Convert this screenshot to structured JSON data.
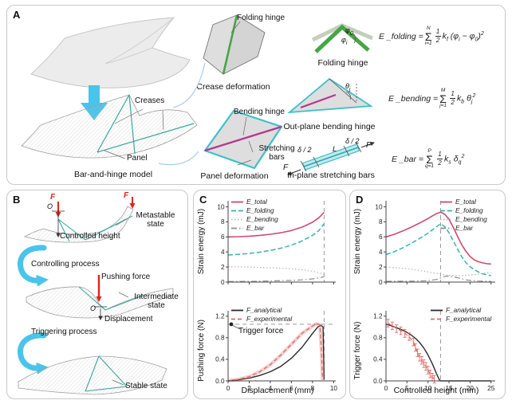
{
  "colors": {
    "crease_teal": "#3aa79e",
    "hinge_green": "#46a546",
    "hinge_green_light": "#c3cfbc",
    "bending_magenta": "#b03b8e",
    "bar_cyan": "#3fc0c9",
    "force_red": "#e3231c",
    "process_cyan": "#49c4ea",
    "connector_blue": "#a9cfe0",
    "guide_gray": "#9a9a9a"
  },
  "panel_a": {
    "letter": "A",
    "creases_label": "Creases",
    "panel_label": "Panel",
    "model_caption": "Bar-and-hinge model",
    "crease_group": {
      "hinge_label": "Folding hinge",
      "caption": "Crease deformation"
    },
    "panel_group": {
      "hinge_label": "Bending hinge",
      "bars_label": "Stretching bars",
      "caption": "Panel deformation"
    },
    "folding_glyph": {
      "caption": "Folding hinge",
      "phi0": "φ<sub>0</sub>",
      "phi_i": "φ<sub>i</sub>"
    },
    "bending_glyph": {
      "caption": "Out-plane bending hinge",
      "theta": "θ<sub>j</sub>"
    },
    "bar_glyph": {
      "caption": "In-plane stretching bars",
      "delta_left": "δ / 2",
      "delta_right": "δ / 2",
      "length": "L",
      "force_left": "F",
      "force_right": "F"
    },
    "equations": [
      {
        "lhs": "E _folding =",
        "sigma": "Σ",
        "upper": "N",
        "lower": "i=1",
        "num": "1",
        "den": "2",
        "body": "k<sub>f</sub> (φ<sub>i</sub> − φ<sub>0</sub>)<sup>2</sup>"
      },
      {
        "lhs": "E _bending =",
        "sigma": "Σ",
        "upper": "M",
        "lower": "j=1",
        "num": "1",
        "den": "2",
        "body": "k<sub>b</sub> θ<sub>j</sub><sup>2</sup>"
      },
      {
        "lhs": "E _bar =",
        "sigma": "Σ",
        "upper": "P",
        "lower": "q=1",
        "num": "1",
        "den": "2",
        "body": "k<sub>s</sub> δ<sub>q</sub><sup>2</sup>"
      }
    ]
  },
  "panel_b": {
    "letter": "B",
    "force_label": "F",
    "origin_label": "O",
    "metastable": "Metastable state",
    "controlled_height": "Controlled height",
    "controlling": "Controlling process",
    "pushing_force": "Pushing force",
    "intermediate": "Intermediate state",
    "displacement": "Displacement",
    "triggering": "Triggering process",
    "stable": "Stable state"
  },
  "panel_c": {
    "letter": "C",
    "trigger_label": "Trigger force"
  },
  "panel_d": {
    "letter": "D"
  },
  "chart_data": [
    {
      "id": "c_energy",
      "type": "line",
      "title": "",
      "xlabel": "",
      "ylabel": "Strain energy (mJ)",
      "xlim": [
        0,
        10.2
      ],
      "ylim": [
        0,
        10.8
      ],
      "xticks": [
        0,
        2,
        4,
        6,
        8,
        10
      ],
      "yticks": [
        0,
        2,
        4,
        6,
        8,
        10
      ],
      "ytick_labels": [
        "0",
        "2",
        "4",
        "6",
        "8",
        "10"
      ],
      "show_x_labels": false,
      "grid": false,
      "legend_position": "top-left-inside",
      "vlines": [
        {
          "x": 9.1
        }
      ],
      "series": [
        {
          "name": "E_total",
          "color": "#cf4a72",
          "dash": "",
          "width": 1.6,
          "points": [
            [
              0,
              6.0
            ],
            [
              1,
              6.03
            ],
            [
              2,
              6.1
            ],
            [
              3,
              6.2
            ],
            [
              4,
              6.35
            ],
            [
              5,
              6.55
            ],
            [
              6,
              6.85
            ],
            [
              7,
              7.3
            ],
            [
              8,
              7.95
            ],
            [
              8.6,
              8.55
            ],
            [
              9.1,
              9.25
            ]
          ]
        },
        {
          "name": "E_folding",
          "color": "#3ab3ad",
          "dash": "6 3",
          "width": 1.5,
          "points": [
            [
              0,
              3.6
            ],
            [
              1,
              3.68
            ],
            [
              2,
              3.8
            ],
            [
              3,
              3.97
            ],
            [
              4,
              4.2
            ],
            [
              5,
              4.5
            ],
            [
              6,
              4.9
            ],
            [
              7,
              5.45
            ],
            [
              8,
              6.2
            ],
            [
              8.6,
              6.85
            ],
            [
              9.1,
              7.75
            ]
          ]
        },
        {
          "name": "E_bending",
          "color": "#b9b9b9",
          "dash": "1.5 2.5",
          "width": 1.3,
          "points": [
            [
              0,
              2.05
            ],
            [
              2,
              2.0
            ],
            [
              4,
              1.9
            ],
            [
              6,
              1.77
            ],
            [
              7,
              1.65
            ],
            [
              8,
              1.45
            ],
            [
              8.6,
              1.25
            ],
            [
              9.1,
              1.02
            ]
          ]
        },
        {
          "name": "E_bar",
          "color": "#8f8f8f",
          "dash": "7 3 1.5 3",
          "width": 1.2,
          "points": [
            [
              0,
              0.07
            ],
            [
              2,
              0.1
            ],
            [
              4,
              0.15
            ],
            [
              6,
              0.22
            ],
            [
              7,
              0.3
            ],
            [
              8,
              0.42
            ],
            [
              8.6,
              0.55
            ],
            [
              9.1,
              0.72
            ]
          ]
        }
      ]
    },
    {
      "id": "c_force",
      "type": "line",
      "title": "",
      "xlabel": "Displacement (mm)",
      "ylabel": "Pushing force (N)",
      "xlim": [
        0,
        10.2
      ],
      "ylim": [
        0,
        1.3
      ],
      "xticks": [
        0,
        2,
        4,
        6,
        8,
        10
      ],
      "xtick_labels": [
        "0",
        "2",
        "4",
        "6",
        "8",
        "10"
      ],
      "yticks": [
        0,
        0.4,
        0.8,
        1.2
      ],
      "ytick_labels": [
        "0.0",
        "0.4",
        "0.8",
        "1.2"
      ],
      "show_x_labels": true,
      "grid": false,
      "legend_position": "top-left-inside",
      "vlines": [
        {
          "x": 9.1
        }
      ],
      "hlines": [
        {
          "y": 1.05
        }
      ],
      "markers": [
        {
          "x": 0.3,
          "y": 1.05
        }
      ],
      "annotation": "Trigger force",
      "series": [
        {
          "name": "F_analytical",
          "color": "#2a2a2a",
          "dash": "",
          "width": 1.4,
          "points": [
            [
              0,
              0
            ],
            [
              1,
              0.02
            ],
            [
              2,
              0.05
            ],
            [
              3,
              0.1
            ],
            [
              4,
              0.17
            ],
            [
              5,
              0.27
            ],
            [
              6,
              0.42
            ],
            [
              7,
              0.62
            ],
            [
              8,
              0.88
            ],
            [
              8.5,
              1.0
            ],
            [
              8.8,
              1.03
            ],
            [
              9.0,
              1.0
            ],
            [
              9.1,
              0.02
            ]
          ]
        },
        {
          "name": "F_experimental",
          "color": "#dd6b66",
          "dash": "5 3",
          "width": 1.3,
          "band": true,
          "points": [
            [
              0,
              0
            ],
            [
              1,
              0.03
            ],
            [
              2,
              0.08
            ],
            [
              3,
              0.17
            ],
            [
              4,
              0.3
            ],
            [
              5,
              0.48
            ],
            [
              6,
              0.68
            ],
            [
              7,
              0.88
            ],
            [
              8,
              1.02
            ],
            [
              8.4,
              1.06
            ],
            [
              8.7,
              1.04
            ],
            [
              8.85,
              0.55
            ],
            [
              8.95,
              0.02
            ]
          ]
        }
      ]
    },
    {
      "id": "d_energy",
      "type": "line",
      "title": "",
      "xlabel": "",
      "ylabel": "Strain energy (mJ)",
      "xlim": [
        0,
        26
      ],
      "ylim": [
        0,
        10.8
      ],
      "xticks": [
        0,
        5,
        10,
        15,
        20,
        25
      ],
      "yticks": [
        0,
        2,
        4,
        6,
        8,
        10
      ],
      "ytick_labels": [
        "0",
        "2",
        "4",
        "6",
        "8",
        "10"
      ],
      "show_x_labels": false,
      "grid": false,
      "legend_position": "top-right-inside",
      "vlines": [
        {
          "x": 13
        }
      ],
      "series": [
        {
          "name": "E_total",
          "color": "#cf4a72",
          "dash": "",
          "width": 1.6,
          "points": [
            [
              0,
              6.0
            ],
            [
              2,
              6.35
            ],
            [
              4,
              6.8
            ],
            [
              6,
              7.3
            ],
            [
              8,
              7.85
            ],
            [
              10,
              8.45
            ],
            [
              12,
              9.1
            ],
            [
              13,
              9.3
            ],
            [
              14,
              9.0
            ],
            [
              15,
              8.35
            ],
            [
              16,
              7.3
            ],
            [
              17,
              6.1
            ],
            [
              18,
              5.0
            ],
            [
              19,
              4.1
            ],
            [
              20,
              3.4
            ],
            [
              21,
              2.95
            ],
            [
              22,
              2.7
            ],
            [
              23,
              2.55
            ],
            [
              24,
              2.45
            ],
            [
              25,
              2.4
            ]
          ]
        },
        {
          "name": "E_folding",
          "color": "#3ab3ad",
          "dash": "6 3",
          "width": 1.5,
          "points": [
            [
              0,
              3.65
            ],
            [
              2,
              4.05
            ],
            [
              4,
              4.55
            ],
            [
              6,
              5.15
            ],
            [
              8,
              5.8
            ],
            [
              10,
              6.5
            ],
            [
              12,
              7.35
            ],
            [
              13,
              7.75
            ],
            [
              14,
              7.35
            ],
            [
              15,
              6.55
            ],
            [
              16,
              5.5
            ],
            [
              17,
              4.4
            ],
            [
              18,
              3.4
            ],
            [
              19,
              2.6
            ],
            [
              20,
              2.05
            ],
            [
              21,
              1.65
            ],
            [
              22,
              1.35
            ],
            [
              23,
              1.1
            ],
            [
              24,
              0.95
            ],
            [
              25,
              0.85
            ]
          ]
        },
        {
          "name": "E_bending",
          "color": "#b9b9b9",
          "dash": "1.5 2.5",
          "width": 1.3,
          "points": [
            [
              0,
              2.0
            ],
            [
              3,
              1.9
            ],
            [
              6,
              1.7
            ],
            [
              9,
              1.45
            ],
            [
              12,
              1.15
            ],
            [
              13,
              1.05
            ],
            [
              15,
              0.9
            ],
            [
              17,
              0.85
            ],
            [
              19,
              0.9
            ],
            [
              21,
              1.0
            ],
            [
              23,
              1.15
            ],
            [
              25,
              1.3
            ]
          ]
        },
        {
          "name": "E_bar",
          "color": "#8f8f8f",
          "dash": "7 3 1.5 3",
          "width": 1.2,
          "points": [
            [
              0,
              0.1
            ],
            [
              4,
              0.12
            ],
            [
              8,
              0.15
            ],
            [
              10,
              0.18
            ],
            [
              12,
              0.35
            ],
            [
              13,
              0.55
            ],
            [
              14,
              0.75
            ],
            [
              15,
              0.82
            ],
            [
              16,
              0.72
            ],
            [
              17,
              0.58
            ],
            [
              18,
              0.44
            ],
            [
              19,
              0.3
            ],
            [
              20,
              0.22
            ],
            [
              22,
              0.14
            ],
            [
              25,
              0.1
            ]
          ]
        }
      ]
    },
    {
      "id": "d_force",
      "type": "line",
      "title": "",
      "xlabel": "Controlled height (mm)",
      "ylabel": "Trigger force (N)",
      "xlim": [
        0,
        26
      ],
      "ylim": [
        0,
        1.3
      ],
      "xticks": [
        0,
        5,
        10,
        15,
        20,
        25
      ],
      "xtick_labels": [
        "0",
        "5",
        "10",
        "15",
        "20",
        "25"
      ],
      "yticks": [
        0,
        0.4,
        0.8,
        1.2
      ],
      "ytick_labels": [
        "0.0",
        "0.4",
        "0.8",
        "1.2"
      ],
      "show_x_labels": true,
      "grid": false,
      "legend_position": "top-right-inside",
      "vlines": [
        {
          "x": 13
        }
      ],
      "series": [
        {
          "name": "F_analytical",
          "color": "#2a2a2a",
          "dash": "",
          "width": 1.4,
          "points": [
            [
              0,
              1.05
            ],
            [
              1,
              1.03
            ],
            [
              2,
              1.0
            ],
            [
              3,
              0.97
            ],
            [
              4,
              0.94
            ],
            [
              5,
              0.9
            ],
            [
              6,
              0.85
            ],
            [
              7,
              0.79
            ],
            [
              8,
              0.71
            ],
            [
              9,
              0.61
            ],
            [
              10,
              0.48
            ],
            [
              11,
              0.32
            ],
            [
              12,
              0.14
            ],
            [
              12.7,
              0.02
            ],
            [
              13,
              0
            ],
            [
              17,
              0
            ],
            [
              21,
              0
            ],
            [
              25,
              0
            ]
          ]
        },
        {
          "name": "F_experimental",
          "color": "#dd6b66",
          "dash": "5 3",
          "width": 1.2,
          "yerr": 0.07,
          "points": [
            [
              0.5,
              1.07
            ],
            [
              1.5,
              1.02
            ],
            [
              2.5,
              0.97
            ],
            [
              3.5,
              0.93
            ],
            [
              4.5,
              0.88
            ],
            [
              5.5,
              0.82
            ],
            [
              6.5,
              0.72
            ],
            [
              7,
              0.62
            ],
            [
              7.5,
              0.52
            ],
            [
              8,
              0.44
            ],
            [
              8.5,
              0.38
            ],
            [
              9,
              0.32
            ],
            [
              9.5,
              0.27
            ],
            [
              10,
              0.2
            ],
            [
              10.5,
              0.13
            ],
            [
              11,
              0.07
            ],
            [
              11.5,
              0.03
            ]
          ]
        }
      ]
    }
  ]
}
